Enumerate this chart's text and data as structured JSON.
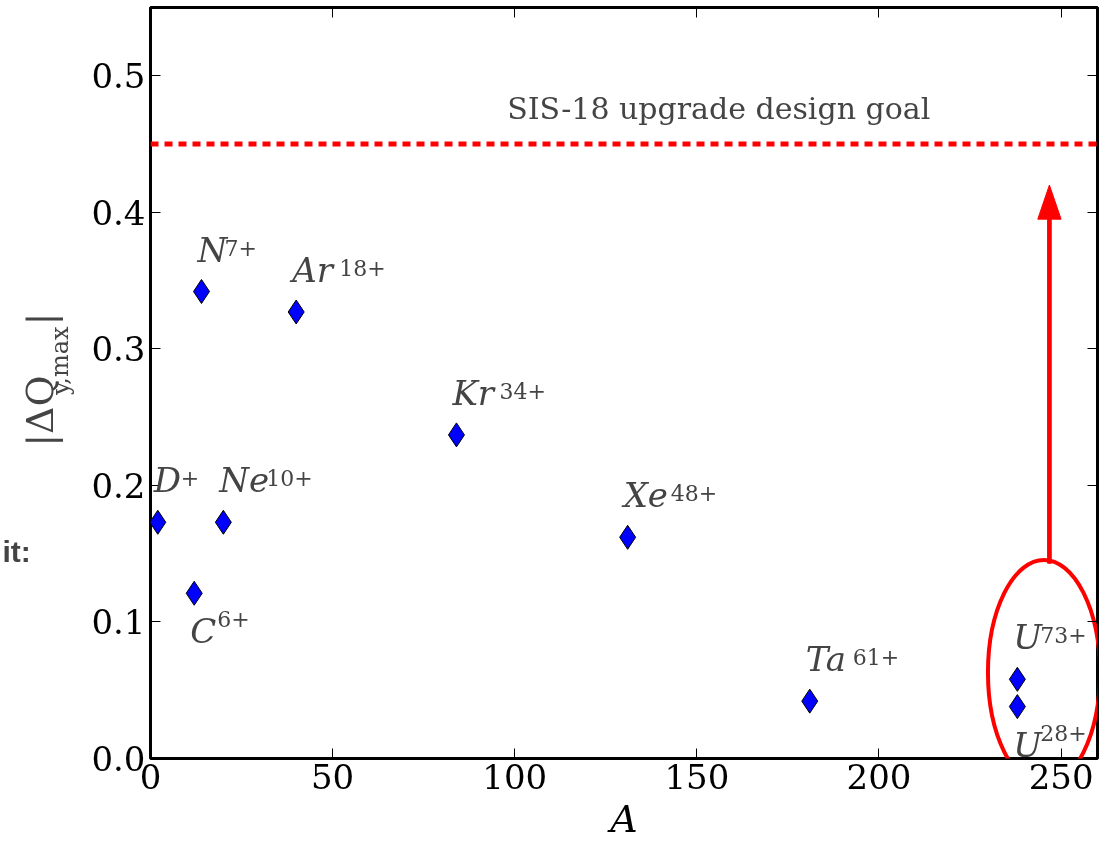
{
  "chart_data": {
    "type": "scatter",
    "xlabel": "A",
    "ylabel": "|ΔQ$_{y,max}$|",
    "x": [
      2,
      12,
      14,
      20,
      40,
      84,
      131,
      181,
      238,
      238
    ],
    "series": [
      {
        "color": "#0000ff",
        "values": [
          0.173,
          0.121,
          0.342,
          0.173,
          0.327,
          0.237,
          0.162,
          0.042,
          0.058,
          0.038
        ]
      }
    ],
    "marker": "diamond",
    "grid": false,
    "xlim": [
      0,
      260
    ],
    "ylim": [
      0,
      0.55
    ],
    "xticks": [
      0,
      50,
      100,
      150,
      200,
      250
    ],
    "yticks": [
      {
        "value": 0,
        "label": "0.0"
      },
      0.1,
      0.2,
      0.3,
      0.4,
      0.5
    ],
    "ref_lines": [
      {
        "axis": "y",
        "value": 0.45,
        "label": "SIS-18 upgrade design goal",
        "color": "#ff0000",
        "line_style": "dashed"
      }
    ],
    "annotations": [
      {
        "text": "D$^{+}$",
        "x": 2,
        "y": 0.173
      },
      {
        "text": "C$^{6+}$",
        "x": 12,
        "y": 0.121
      },
      {
        "text": "N$^{7+}$",
        "x": 14,
        "y": 0.342
      },
      {
        "text": "Ne$^{10+}$",
        "x": 20,
        "y": 0.173
      },
      {
        "text": "Ar$^{18+}$",
        "x": 40,
        "y": 0.327
      },
      {
        "text": "Kr$^{34+}$",
        "x": 84,
        "y": 0.237
      },
      {
        "text": "Xe$^{48+}$",
        "x": 131,
        "y": 0.162
      },
      {
        "text": "Ta$^{61+}$",
        "x": 181,
        "y": 0.042
      },
      {
        "text": "U$^{73+}$",
        "x": 238,
        "y": 0.058
      },
      {
        "text": "U$^{28+}$",
        "x": 238,
        "y": 0.038
      },
      "it:"
    ]
  }
}
